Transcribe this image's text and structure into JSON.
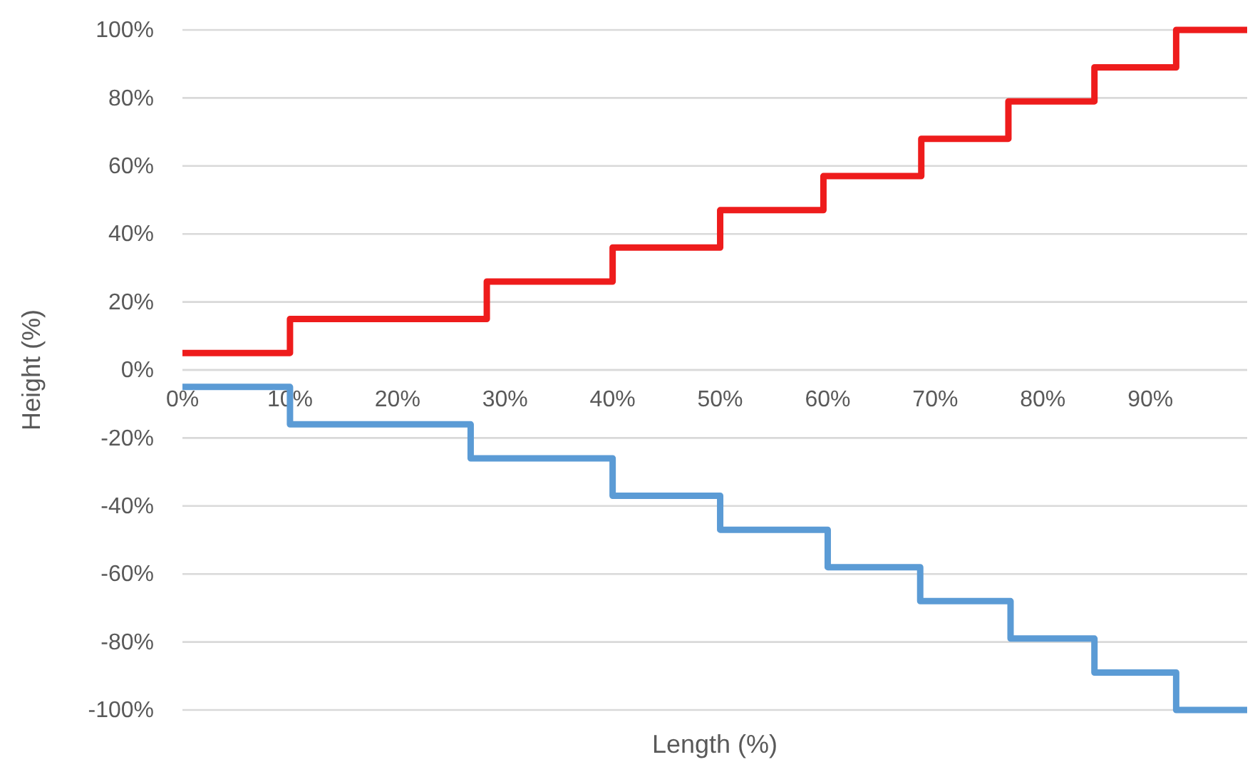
{
  "chart_data": {
    "type": "step",
    "xlabel": "Length (%)",
    "ylabel": "Height (%)",
    "xlim": [
      0,
      99
    ],
    "xticks": [
      {
        "value": 0,
        "label": "0%"
      },
      {
        "value": 10,
        "label": "10%"
      },
      {
        "value": 20,
        "label": "20%"
      },
      {
        "value": 30,
        "label": "30%"
      },
      {
        "value": 40,
        "label": "40%"
      },
      {
        "value": 50,
        "label": "50%"
      },
      {
        "value": 60,
        "label": "60%"
      },
      {
        "value": 70,
        "label": "70%"
      },
      {
        "value": 80,
        "label": "80%"
      },
      {
        "value": 90,
        "label": "90%"
      }
    ],
    "ylim": [
      -100,
      100
    ],
    "yticks": [
      {
        "value": -100,
        "label": "-100%"
      },
      {
        "value": -80,
        "label": "-80%"
      },
      {
        "value": -60,
        "label": "-60%"
      },
      {
        "value": -40,
        "label": "-40%"
      },
      {
        "value": -20,
        "label": "-20%"
      },
      {
        "value": 0,
        "label": "0%"
      },
      {
        "value": 20,
        "label": "20%"
      },
      {
        "value": 40,
        "label": "40%"
      },
      {
        "value": 60,
        "label": "60%"
      },
      {
        "value": 80,
        "label": "80%"
      },
      {
        "value": 100,
        "label": "100%"
      }
    ],
    "grid": "y",
    "line_style": "solid",
    "series": [
      {
        "color": "#ee1c1c",
        "x": [
          0,
          10,
          28.3,
          40,
          50,
          59.6,
          68.7,
          76.8,
          84.8,
          92.4,
          99
        ],
        "values": [
          5,
          15,
          26,
          36,
          47,
          57,
          68,
          79,
          89,
          100,
          100
        ]
      },
      {
        "color": "#5b9bd5",
        "x": [
          0,
          10,
          26.8,
          40,
          50,
          60,
          68.6,
          77,
          84.8,
          92.4,
          99
        ],
        "values": [
          -5,
          -16,
          -26,
          -37,
          -47,
          -58,
          -68,
          -79,
          -89,
          -100,
          -100
        ]
      }
    ]
  }
}
